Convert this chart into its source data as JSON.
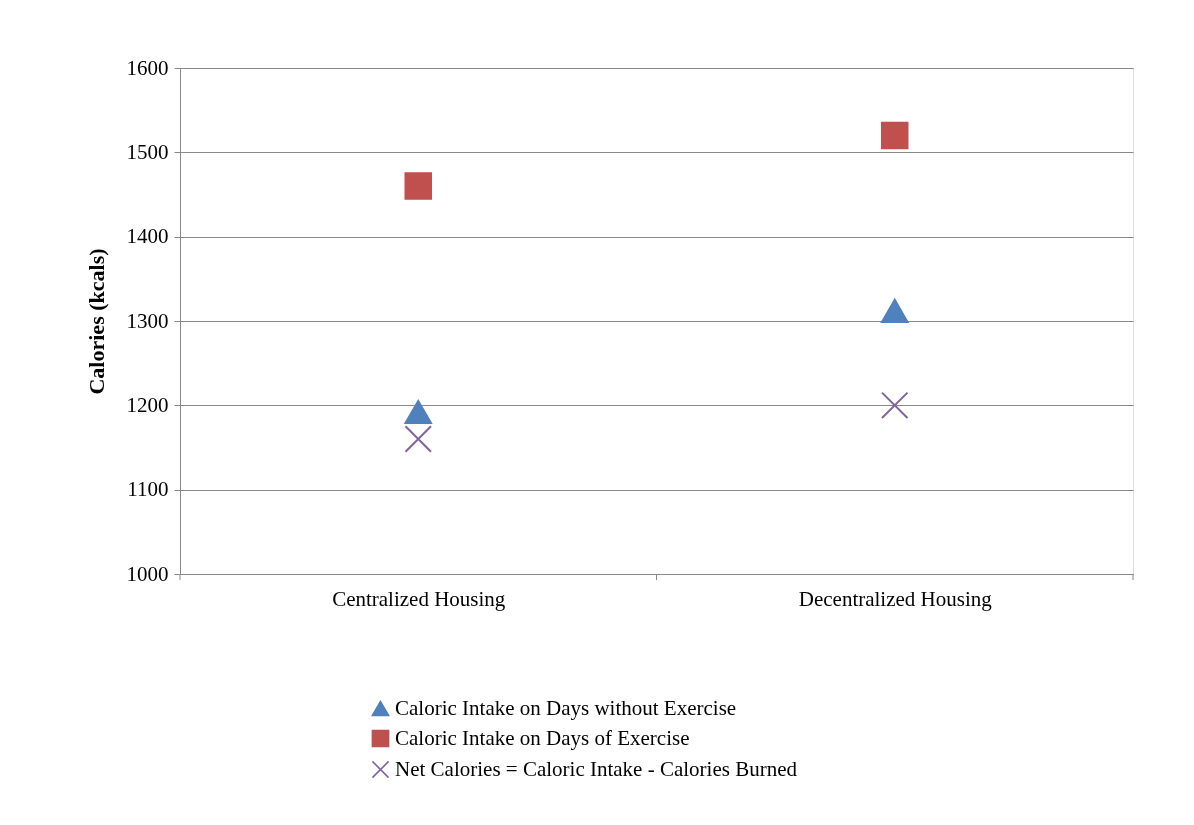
{
  "chart_data": {
    "type": "scatter",
    "ylabel": "Calories (kcals)",
    "categories": [
      "Centralized Housing",
      "Decentralized Housing"
    ],
    "series": [
      {
        "name": "Caloric Intake on Days without Exercise",
        "color": "#4f81bd",
        "marker": "triangle",
        "values": [
          1192,
          1312
        ]
      },
      {
        "name": "Caloric Intake on Days of Exercise",
        "color": "#c0504d",
        "marker": "square",
        "values": [
          1460,
          1520
        ]
      },
      {
        "name": "Net Calories = Caloric Intake - Calories Burned",
        "color": "#8064a2",
        "marker": "cross",
        "values": [
          1160,
          1200
        ]
      }
    ],
    "ylim": [
      1000,
      1600
    ],
    "yticks": [
      1000,
      1100,
      1200,
      1300,
      1400,
      1500,
      1600
    ],
    "grid": "y",
    "legend": "bottom"
  }
}
